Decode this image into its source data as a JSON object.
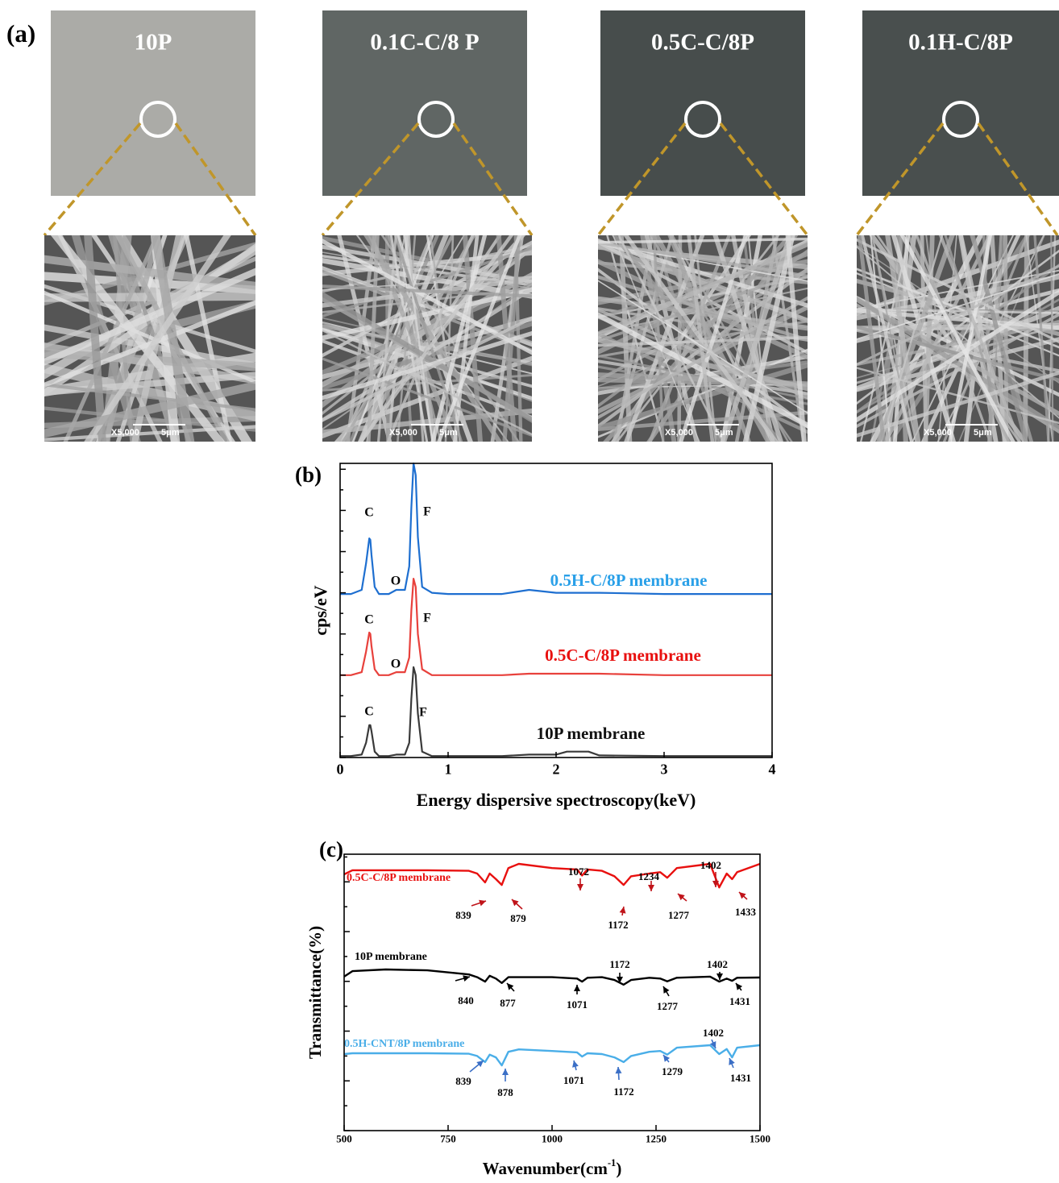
{
  "photos": {
    "panel": "(a)",
    "samples": [
      "10P",
      "0.1C-C/8 P",
      "0.5C-C/8P",
      "0.1H-C/8P"
    ],
    "colors": [
      "#a8a8a4",
      "#5a605e",
      "#404645",
      "#424847"
    ],
    "sem_magnification": "X5,000",
    "sem_scale_bar": "5μm"
  },
  "chart_data": [
    {
      "type": "line",
      "panel": "(b)",
      "ylabel": "cps/eV",
      "xlabel": "Energy dispersive spectroscopy(keV)",
      "x": [
        0,
        0.1,
        0.2,
        0.24,
        0.27,
        0.28,
        0.29,
        0.32,
        0.36,
        0.45,
        0.52,
        0.56,
        0.6,
        0.64,
        0.66,
        0.68,
        0.7,
        0.72,
        0.76,
        0.85,
        1.0,
        1.5,
        1.75,
        2.0,
        2.1,
        2.2,
        2.3,
        2.4,
        3.0,
        3.5,
        4.0
      ],
      "series": [
        {
          "name": "0.5H-C/8P membrane",
          "color": "#1e6fd0",
          "label_color": "#2aa0e8",
          "peak_labels": [
            "C",
            "O",
            "F"
          ],
          "values": [
            55.6,
            55.6,
            57,
            66,
            74.5,
            74,
            69,
            58,
            55.6,
            55.6,
            57,
            57,
            57,
            65,
            85,
            100,
            96,
            75,
            58,
            56,
            55.6,
            55.6,
            57,
            56,
            56,
            56,
            56,
            56,
            55.6,
            55.6,
            55.6
          ]
        },
        {
          "name": "0.5C-C/8P membrane",
          "color": "#e8413c",
          "label_color": "#e8100f",
          "peak_labels": [
            "C",
            "O",
            "F"
          ],
          "values": [
            28,
            28,
            29,
            36,
            42.5,
            42,
            38,
            30,
            28,
            28,
            29,
            29,
            29,
            34,
            50,
            60.8,
            58,
            42,
            30,
            28,
            28,
            28,
            28.5,
            28.5,
            28.5,
            28.5,
            28.5,
            28.5,
            28,
            28,
            28
          ]
        },
        {
          "name": "10P membrane",
          "color": "#3a3a3a",
          "label_color": "#111111",
          "peak_labels": [
            "C",
            "F"
          ],
          "values": [
            0.5,
            0.5,
            1,
            5,
            11,
            11,
            9,
            2,
            0.5,
            0.5,
            1,
            1,
            1,
            5,
            20,
            30.7,
            28,
            15,
            2,
            0.5,
            0.5,
            0.5,
            1,
            1,
            2,
            2,
            2,
            0.7,
            0.5,
            0.5,
            0.5
          ]
        }
      ],
      "xlim": [
        0,
        4
      ],
      "xticks": [
        0,
        1,
        2,
        3,
        4
      ],
      "ylim": [
        0,
        100
      ],
      "yticks": [
        0,
        7,
        14,
        21,
        28,
        35,
        42,
        49,
        56,
        63,
        70,
        77,
        84,
        91,
        98
      ]
    },
    {
      "type": "line",
      "panel": "(c)",
      "ylabel": "Transmittance(%)",
      "xlabel": [
        "Wavenumber(cm",
        "-1",
        ")"
      ],
      "x": [
        500,
        520,
        600,
        700,
        800,
        820,
        839,
        850,
        865,
        879,
        895,
        920,
        1000,
        1060,
        1072,
        1085,
        1120,
        1150,
        1172,
        1190,
        1234,
        1260,
        1277,
        1300,
        1380,
        1402,
        1420,
        1433,
        1445,
        1500
      ],
      "series": [
        {
          "name": "0.5C-C/8P membrane",
          "color": "#e8100f",
          "arrow_color": "#c0141a",
          "peaks": [
            839,
            879,
            1072,
            1172,
            1234,
            1277,
            1402,
            1433
          ],
          "values": [
            92.7,
            94.2,
            94.2,
            94.2,
            94,
            93,
            89.8,
            93,
            91,
            88.9,
            95,
            96.5,
            95,
            94.5,
            92.3,
            94.5,
            94,
            92,
            88.9,
            92,
            93,
            93.5,
            91.5,
            95,
            96.5,
            88,
            93,
            91,
            93.5,
            96.5
          ]
        },
        {
          "name": "10P membrane",
          "color": "#000000",
          "arrow_color": "#000000",
          "peaks": [
            840,
            877,
            1071,
            1172,
            1277,
            1402,
            1431
          ],
          "values": [
            55.7,
            57.7,
            58.3,
            58,
            56.5,
            55.5,
            53.9,
            56,
            55,
            53.4,
            55.5,
            55.5,
            55.5,
            55,
            53.9,
            55.3,
            55.5,
            54.5,
            52.8,
            54.5,
            55.3,
            55,
            54,
            55.3,
            55.7,
            53.9,
            55,
            54.2,
            55.3,
            55.4
          ]
        },
        {
          "name": "0.5H-CNT/8P membrane",
          "color": "#4aaee8",
          "arrow_color": "#3b6fc6",
          "peaks": [
            839,
            878,
            1071,
            1172,
            1279,
            1402,
            1431
          ],
          "values": [
            27.7,
            28,
            28,
            28,
            27.8,
            27,
            24.8,
            27.5,
            26.5,
            23.6,
            28.5,
            29.4,
            28.8,
            28.3,
            26.8,
            28,
            27.7,
            26.5,
            24.8,
            27,
            28.5,
            28.8,
            27.5,
            30,
            30.9,
            27.7,
            29.5,
            26.5,
            30,
            30.9
          ]
        }
      ],
      "xlim": [
        500,
        1500
      ],
      "xticks": [
        500,
        750,
        1000,
        1250,
        1500
      ],
      "ylim": [
        0,
        100
      ],
      "yticks": [
        0,
        9,
        18,
        27,
        36,
        45,
        54,
        63,
        72,
        81,
        90,
        99
      ]
    }
  ]
}
